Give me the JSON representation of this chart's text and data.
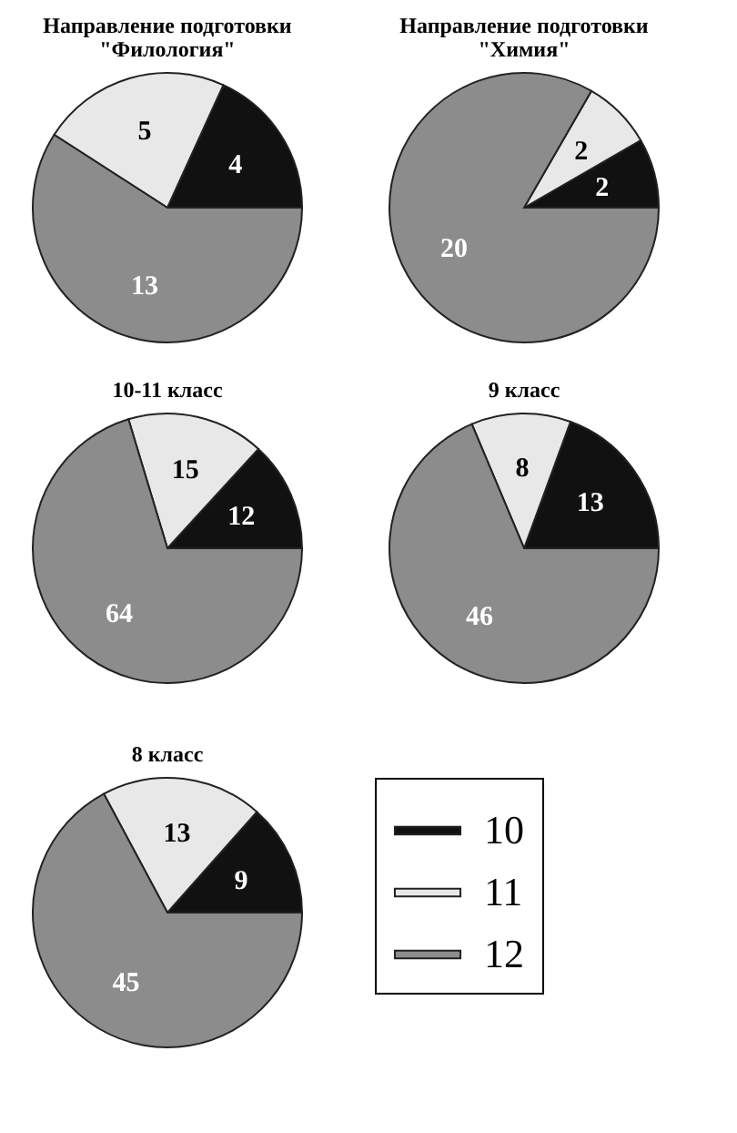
{
  "chart_data": [
    {
      "type": "pie",
      "title": "Направление подготовки\n\"Филология\"",
      "categories": [
        null,
        null,
        null
      ],
      "values": [
        4,
        5,
        13
      ],
      "colors": [
        "#111111",
        "#e8e8e8",
        "#8c8c8c"
      ],
      "data_labels": true
    },
    {
      "type": "pie",
      "title": "Направление подготовки\n\"Химия\"",
      "categories": [
        null,
        null,
        null
      ],
      "values": [
        2,
        2,
        20
      ],
      "colors": [
        "#111111",
        "#e8e8e8",
        "#8c8c8c"
      ],
      "data_labels": true
    },
    {
      "type": "pie",
      "title": "10-11 класс",
      "categories": [
        null,
        null,
        null
      ],
      "values": [
        12,
        15,
        64
      ],
      "colors": [
        "#111111",
        "#e8e8e8",
        "#8c8c8c"
      ],
      "data_labels": true
    },
    {
      "type": "pie",
      "title": "9 класс",
      "categories": [
        null,
        null,
        null
      ],
      "values": [
        13,
        8,
        46
      ],
      "colors": [
        "#111111",
        "#e8e8e8",
        "#8c8c8c"
      ],
      "data_labels": true
    },
    {
      "type": "pie",
      "title": "8 класс",
      "categories": [
        "10",
        "11",
        "12"
      ],
      "values": [
        9,
        13,
        45
      ],
      "colors": [
        "#111111",
        "#e8e8e8",
        "#8c8c8c"
      ],
      "data_labels": true,
      "legend": "right"
    }
  ]
}
